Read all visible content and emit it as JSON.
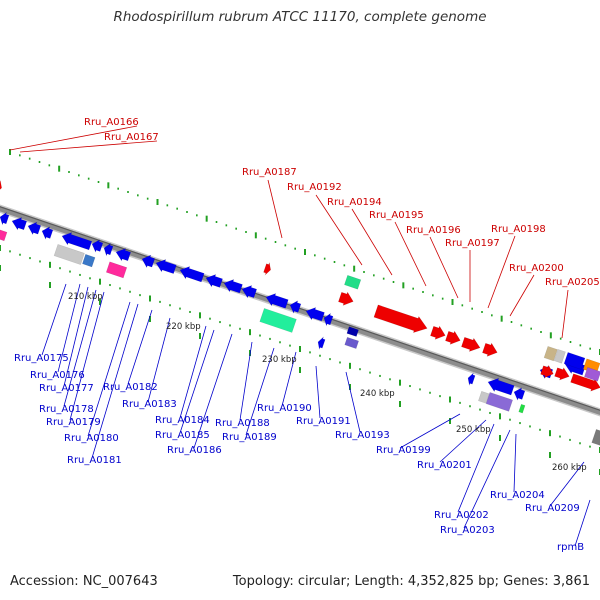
{
  "title": "Rhodospirillum rubrum ATCC 11170, complete genome",
  "footer": {
    "accession": "Accession: NC_007643",
    "summary": "Topology: circular; Length: 4,352,825 bp; Genes: 3,861"
  },
  "colors": {
    "forward_label": "#cc0000",
    "reverse_label": "#0000cc",
    "backbone": "#8c8c8c",
    "tick": "#22a022"
  },
  "scale_labels": [
    "210 kbp",
    "220 kbp",
    "230 kbp",
    "240 kbp",
    "250 kbp",
    "260 kbp"
  ],
  "forward_labels": [
    "Rru_A0166",
    "Rru_A0167",
    "Rru_A0187",
    "Rru_A0192",
    "Rru_A0194",
    "Rru_A0195",
    "Rru_A0196",
    "Rru_A0197",
    "Rru_A0198",
    "Rru_A0200",
    "Rru_A0205"
  ],
  "reverse_labels": [
    "Rru_A0175",
    "Rru_A0176",
    "Rru_A0177",
    "Rru_A0178",
    "Rru_A0179",
    "Rru_A0180",
    "Rru_A0181",
    "Rru_A0182",
    "Rru_A0183",
    "Rru_A0184",
    "Rru_A0185",
    "Rru_A0186",
    "Rru_A0188",
    "Rru_A0189",
    "Rru_A0190",
    "Rru_A0191",
    "Rru_A0193",
    "Rru_A0199",
    "Rru_A0201",
    "Rru_A0202",
    "Rru_A0203",
    "Rru_A0204",
    "Rru_A0209",
    "rpmB"
  ]
}
